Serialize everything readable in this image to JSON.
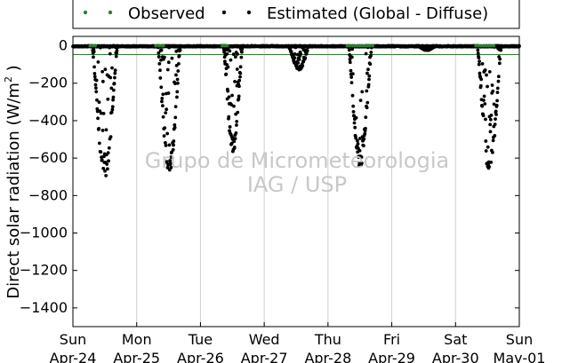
{
  "chart_data": {
    "type": "scatter",
    "title": "",
    "ylabel": "Direct solar radiation (W/m² )",
    "ylabel_main": "Direct solar radiation (W/m",
    "ylabel_sup": "2",
    "ylabel_close": " )",
    "xlabel": "",
    "ylim": [
      -1500,
      50
    ],
    "yticks": [
      0,
      -200,
      -400,
      -600,
      -800,
      -1000,
      -1200,
      -1400
    ],
    "ytick_labels": [
      "0",
      "−200",
      "−400",
      "−600",
      "−800",
      "−1000",
      "−1200",
      "−1400"
    ],
    "xlim_days": [
      0,
      7
    ],
    "xticks": [
      {
        "day": 0,
        "line1": "Sun",
        "line2": "Apr-24"
      },
      {
        "day": 1,
        "line1": "Mon",
        "line2": "Apr-25"
      },
      {
        "day": 2,
        "line1": "Tue",
        "line2": "Apr-26"
      },
      {
        "day": 3,
        "line1": "Wed",
        "line2": "Apr-27"
      },
      {
        "day": 4,
        "line1": "Thu",
        "line2": "Apr-28"
      },
      {
        "day": 5,
        "line1": "Fri",
        "line2": "Apr-29"
      },
      {
        "day": 6,
        "line1": "Sat",
        "line2": "Apr-30"
      },
      {
        "day": 7,
        "line1": "Sun",
        "line2": "May-01"
      }
    ],
    "grid": "vertical",
    "legend_position": "top",
    "series": [
      {
        "name": "Observed",
        "color": "#2e7d32",
        "points": [
          [
            0.27,
            0
          ],
          [
            0.31,
            0
          ],
          [
            0.35,
            0
          ],
          [
            1.3,
            0
          ],
          [
            1.35,
            0
          ],
          [
            1.39,
            0
          ],
          [
            1.42,
            0
          ],
          [
            2.34,
            0
          ],
          [
            2.38,
            0
          ],
          [
            2.42,
            0
          ],
          [
            4.3,
            0
          ],
          [
            4.34,
            0
          ],
          [
            4.38,
            0
          ],
          [
            4.42,
            0
          ],
          [
            4.46,
            0
          ],
          [
            4.5,
            0
          ],
          [
            4.54,
            0
          ],
          [
            4.58,
            0
          ],
          [
            4.62,
            0
          ],
          [
            4.66,
            0
          ],
          [
            4.7,
            0
          ],
          [
            6.32,
            0
          ],
          [
            6.36,
            0
          ],
          [
            6.4,
            0
          ],
          [
            6.44,
            0
          ],
          [
            6.48,
            0
          ],
          [
            6.52,
            0
          ],
          [
            6.56,
            0
          ],
          [
            6.6,
            0
          ]
        ]
      },
      {
        "name": "Estimated (Global - Diffuse)",
        "color": "#000000",
        "days": [
          {
            "day": 0,
            "start": 0.3,
            "end": 0.7,
            "depth": 720
          },
          {
            "day": 1,
            "start": 0.33,
            "end": 0.69,
            "depth": 690
          },
          {
            "day": 2,
            "start": 0.36,
            "end": 0.66,
            "depth": 580
          },
          {
            "day": 3,
            "start": 0.38,
            "end": 0.71,
            "depth": 130
          },
          {
            "day": 4,
            "start": 0.32,
            "end": 0.69,
            "depth": 650
          },
          {
            "day": 5,
            "start": 0.4,
            "end": 0.7,
            "depth": 25
          },
          {
            "day": 6,
            "start": 0.34,
            "end": 0.72,
            "depth": 680
          }
        ]
      }
    ],
    "watermark": [
      "Grupo de Micrometeorologia",
      "IAG / USP"
    ]
  }
}
